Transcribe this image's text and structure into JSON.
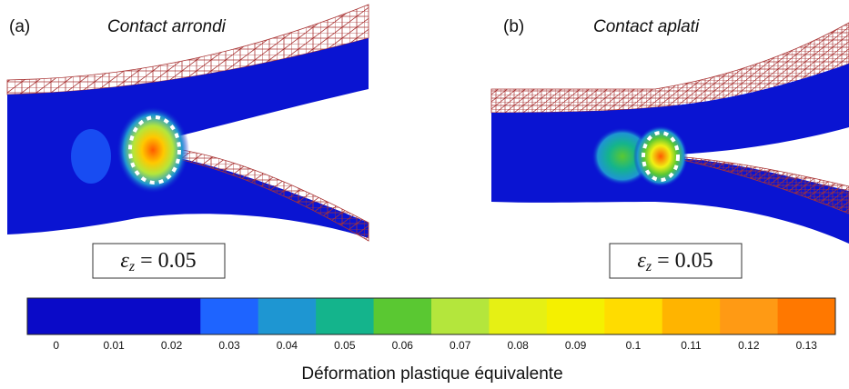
{
  "panels": [
    {
      "label": "(a)",
      "title": "Contact arrondi",
      "strain": {
        "symbol": "ε",
        "subscript": "z",
        "relation": "= 0.05"
      }
    },
    {
      "label": "(b)",
      "title": "Contact aplati",
      "strain": {
        "symbol": "ε",
        "subscript": "z",
        "relation": "= 0.05"
      }
    }
  ],
  "colorbar": {
    "ticks": [
      0,
      0.01,
      0.02,
      0.03,
      0.04,
      0.05,
      0.06,
      0.07,
      0.08,
      0.09,
      0.1,
      0.11,
      0.12,
      0.13
    ],
    "colors": [
      "#0a0ac8",
      "#0a0ac8",
      "#0a0ac8",
      "#1e64ff",
      "#1e96d2",
      "#14b48c",
      "#5ac832",
      "#b4e63c",
      "#e6f014",
      "#f5f000",
      "#ffdc00",
      "#ffb400",
      "#ff9a14",
      "#ff7800"
    ],
    "label": "Déformation plastique équivalente"
  }
}
